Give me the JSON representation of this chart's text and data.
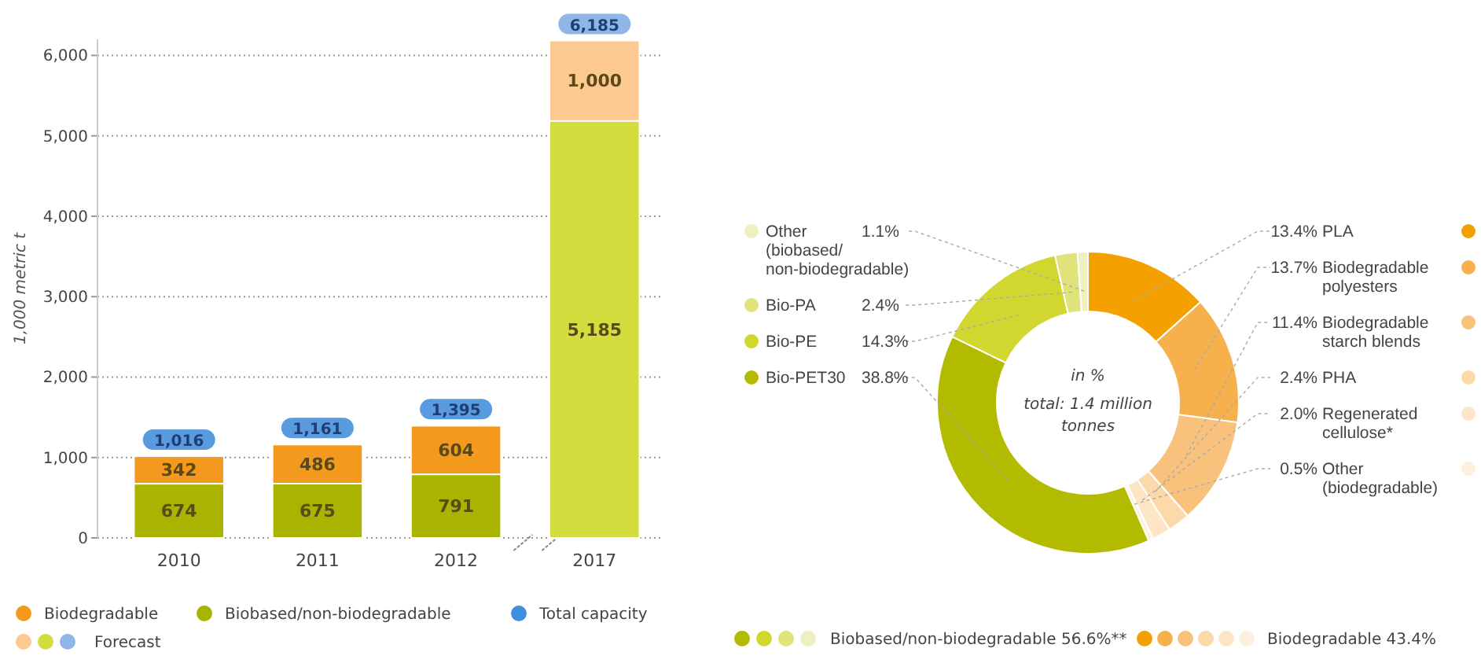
{
  "chart_data": [
    {
      "type": "bar",
      "ylabel": "1,000 metric t",
      "categories": [
        "2010",
        "2011",
        "2012",
        "2017"
      ],
      "stacked": true,
      "series": [
        {
          "name": "Biobased/non-biodegradable",
          "color": "#a9b400",
          "colors": [
            "#a9b400",
            "#a9b400",
            "#a9b400",
            "#d3de3e"
          ],
          "values": [
            674,
            675,
            791,
            5185
          ],
          "value_labels": [
            "674",
            "675",
            "791",
            "5,185"
          ]
        },
        {
          "name": "Biodegradable",
          "color": "#f39a1e",
          "colors": [
            "#f39a1e",
            "#f39a1e",
            "#f39a1e",
            "#fcca90"
          ],
          "values": [
            342,
            486,
            604,
            1000
          ],
          "value_labels": [
            "342",
            "486",
            "604",
            "1,000"
          ]
        }
      ],
      "totals": [
        "1,016",
        "1,161",
        "1,395",
        "6,185"
      ],
      "ylim": [
        0,
        6200
      ],
      "yticks": [
        0,
        {
          "value": 1000,
          "label": "1,000"
        },
        {
          "value": 2000,
          "label": "2,000"
        },
        {
          "value": 3000,
          "label": "3,000"
        },
        {
          "value": 4000,
          "label": "4,000"
        },
        {
          "value": 5000,
          "label": "5,000"
        },
        {
          "value": 6000,
          "label": "6,000"
        }
      ],
      "grid": "y",
      "legend": "bottom",
      "annotations": [
        "Total capacity",
        "Forecast"
      ]
    },
    {
      "type": "donut",
      "categories": [
        "PLA",
        "Biodegradable polyesters",
        "Biodegradable starch blends",
        "PHA",
        "Regenerated cellulose*",
        "Other (biodegradable)",
        "Bio-PET30",
        "Bio-PE",
        "Bio-PA",
        "Other (biobased/non-biodegradable)"
      ],
      "values": [
        13.4,
        13.7,
        11.4,
        2.4,
        2.0,
        0.5,
        38.8,
        14.3,
        2.4,
        1.1
      ],
      "value_labels": [
        "13.4%",
        "13.7%",
        "11.4%",
        "2.4%",
        "2.0%",
        "0.5%",
        "38.8%",
        "14.3%",
        "2.4%",
        "1.1%"
      ],
      "colors": [
        "#f4a000",
        "#f6b04c",
        "#f9c27c",
        "#fbd9a8",
        "#fde6c6",
        "#fdf0de",
        "#b3bb00",
        "#d1d72e",
        "#dfe37a",
        "#eef0c2"
      ],
      "legend": "left",
      "annotations": [
        "in %",
        "total: 1.4 million tonnes",
        "Biobased/non-biodegradable 56.6%**",
        "Biodegradable 43.4%"
      ]
    }
  ]
}
